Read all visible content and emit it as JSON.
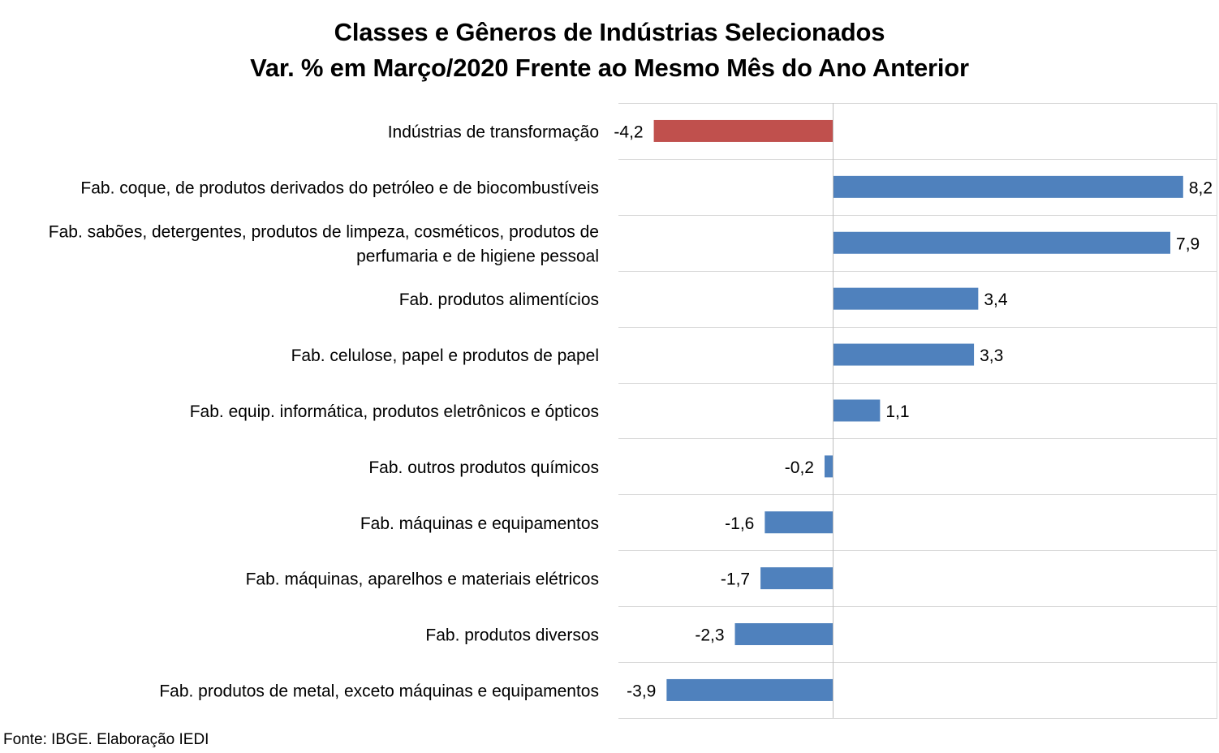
{
  "chart_data": {
    "type": "bar",
    "orientation": "horizontal",
    "title_lines": [
      "Classes e Gêneros de Indústrias Selecionados",
      "Var. % em Março/2020 Frente ao Mesmo Mês do Ano Anterior"
    ],
    "categories": [
      [
        "Indústrias de transformação"
      ],
      [
        "Fab. coque, de produtos derivados do petróleo e de biocombustíveis"
      ],
      [
        "Fab. sabões, detergentes, produtos de limpeza, cosméticos, produtos de",
        "perfumaria e de higiene pessoal"
      ],
      [
        "Fab. produtos alimentícios"
      ],
      [
        "Fab. celulose, papel e produtos de papel"
      ],
      [
        "Fab. equip. informática, produtos eletrônicos e ópticos"
      ],
      [
        "Fab. outros produtos químicos"
      ],
      [
        "Fab. máquinas e equipamentos"
      ],
      [
        "Fab. máquinas, aparelhos e materiais elétricos"
      ],
      [
        "Fab. produtos diversos"
      ],
      [
        "Fab. produtos de metal, exceto máquinas e equipamentos"
      ]
    ],
    "values": [
      -4.2,
      8.2,
      7.9,
      3.4,
      3.3,
      1.1,
      -0.2,
      -1.6,
      -1.7,
      -2.3,
      -3.9
    ],
    "value_labels": [
      "-4,2",
      "8,2",
      "7,9",
      "3,4",
      "3,3",
      "1,1",
      "-0,2",
      "-1,6",
      "-1,7",
      "-2,3",
      "-3,9"
    ],
    "highlight_index": 0,
    "colors": {
      "highlight": "#C0504D",
      "bar": "#4F81BD",
      "grid": "#D9D9D9",
      "axis": "#BFBFBF"
    },
    "xlim": [
      -5,
      9
    ],
    "grid": "horizontal-separators",
    "legend": "none",
    "source": "Fonte: IBGE. Elaboração IEDI"
  }
}
